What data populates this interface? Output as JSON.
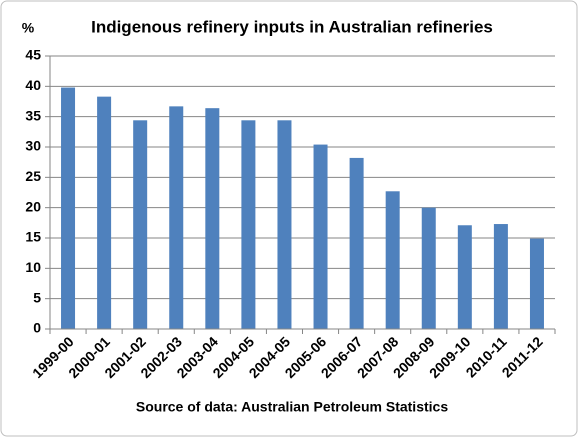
{
  "chart_data": {
    "type": "bar",
    "title": "Indigenous refinery inputs in Australian refineries",
    "y_label": "%",
    "source": "Source of data: Australian Petroleum Statistics",
    "categories": [
      "1999-00",
      "2000-01",
      "2001-02",
      "2002-03",
      "2003-04",
      "2004-05",
      "2004-05",
      "2005-06",
      "2006-07",
      "2007-08",
      "2008-09",
      "2009-10",
      "2010-11",
      "2011-12"
    ],
    "values": [
      39.8,
      38.3,
      34.4,
      36.7,
      36.4,
      34.4,
      34.4,
      30.4,
      28.2,
      22.7,
      20.0,
      17.1,
      17.3,
      14.9
    ],
    "color": "#4f81bd",
    "ylim": [
      0,
      45
    ],
    "yticks": [
      0,
      5,
      10,
      15,
      20,
      25,
      30,
      35,
      40,
      45
    ],
    "grid": true
  }
}
